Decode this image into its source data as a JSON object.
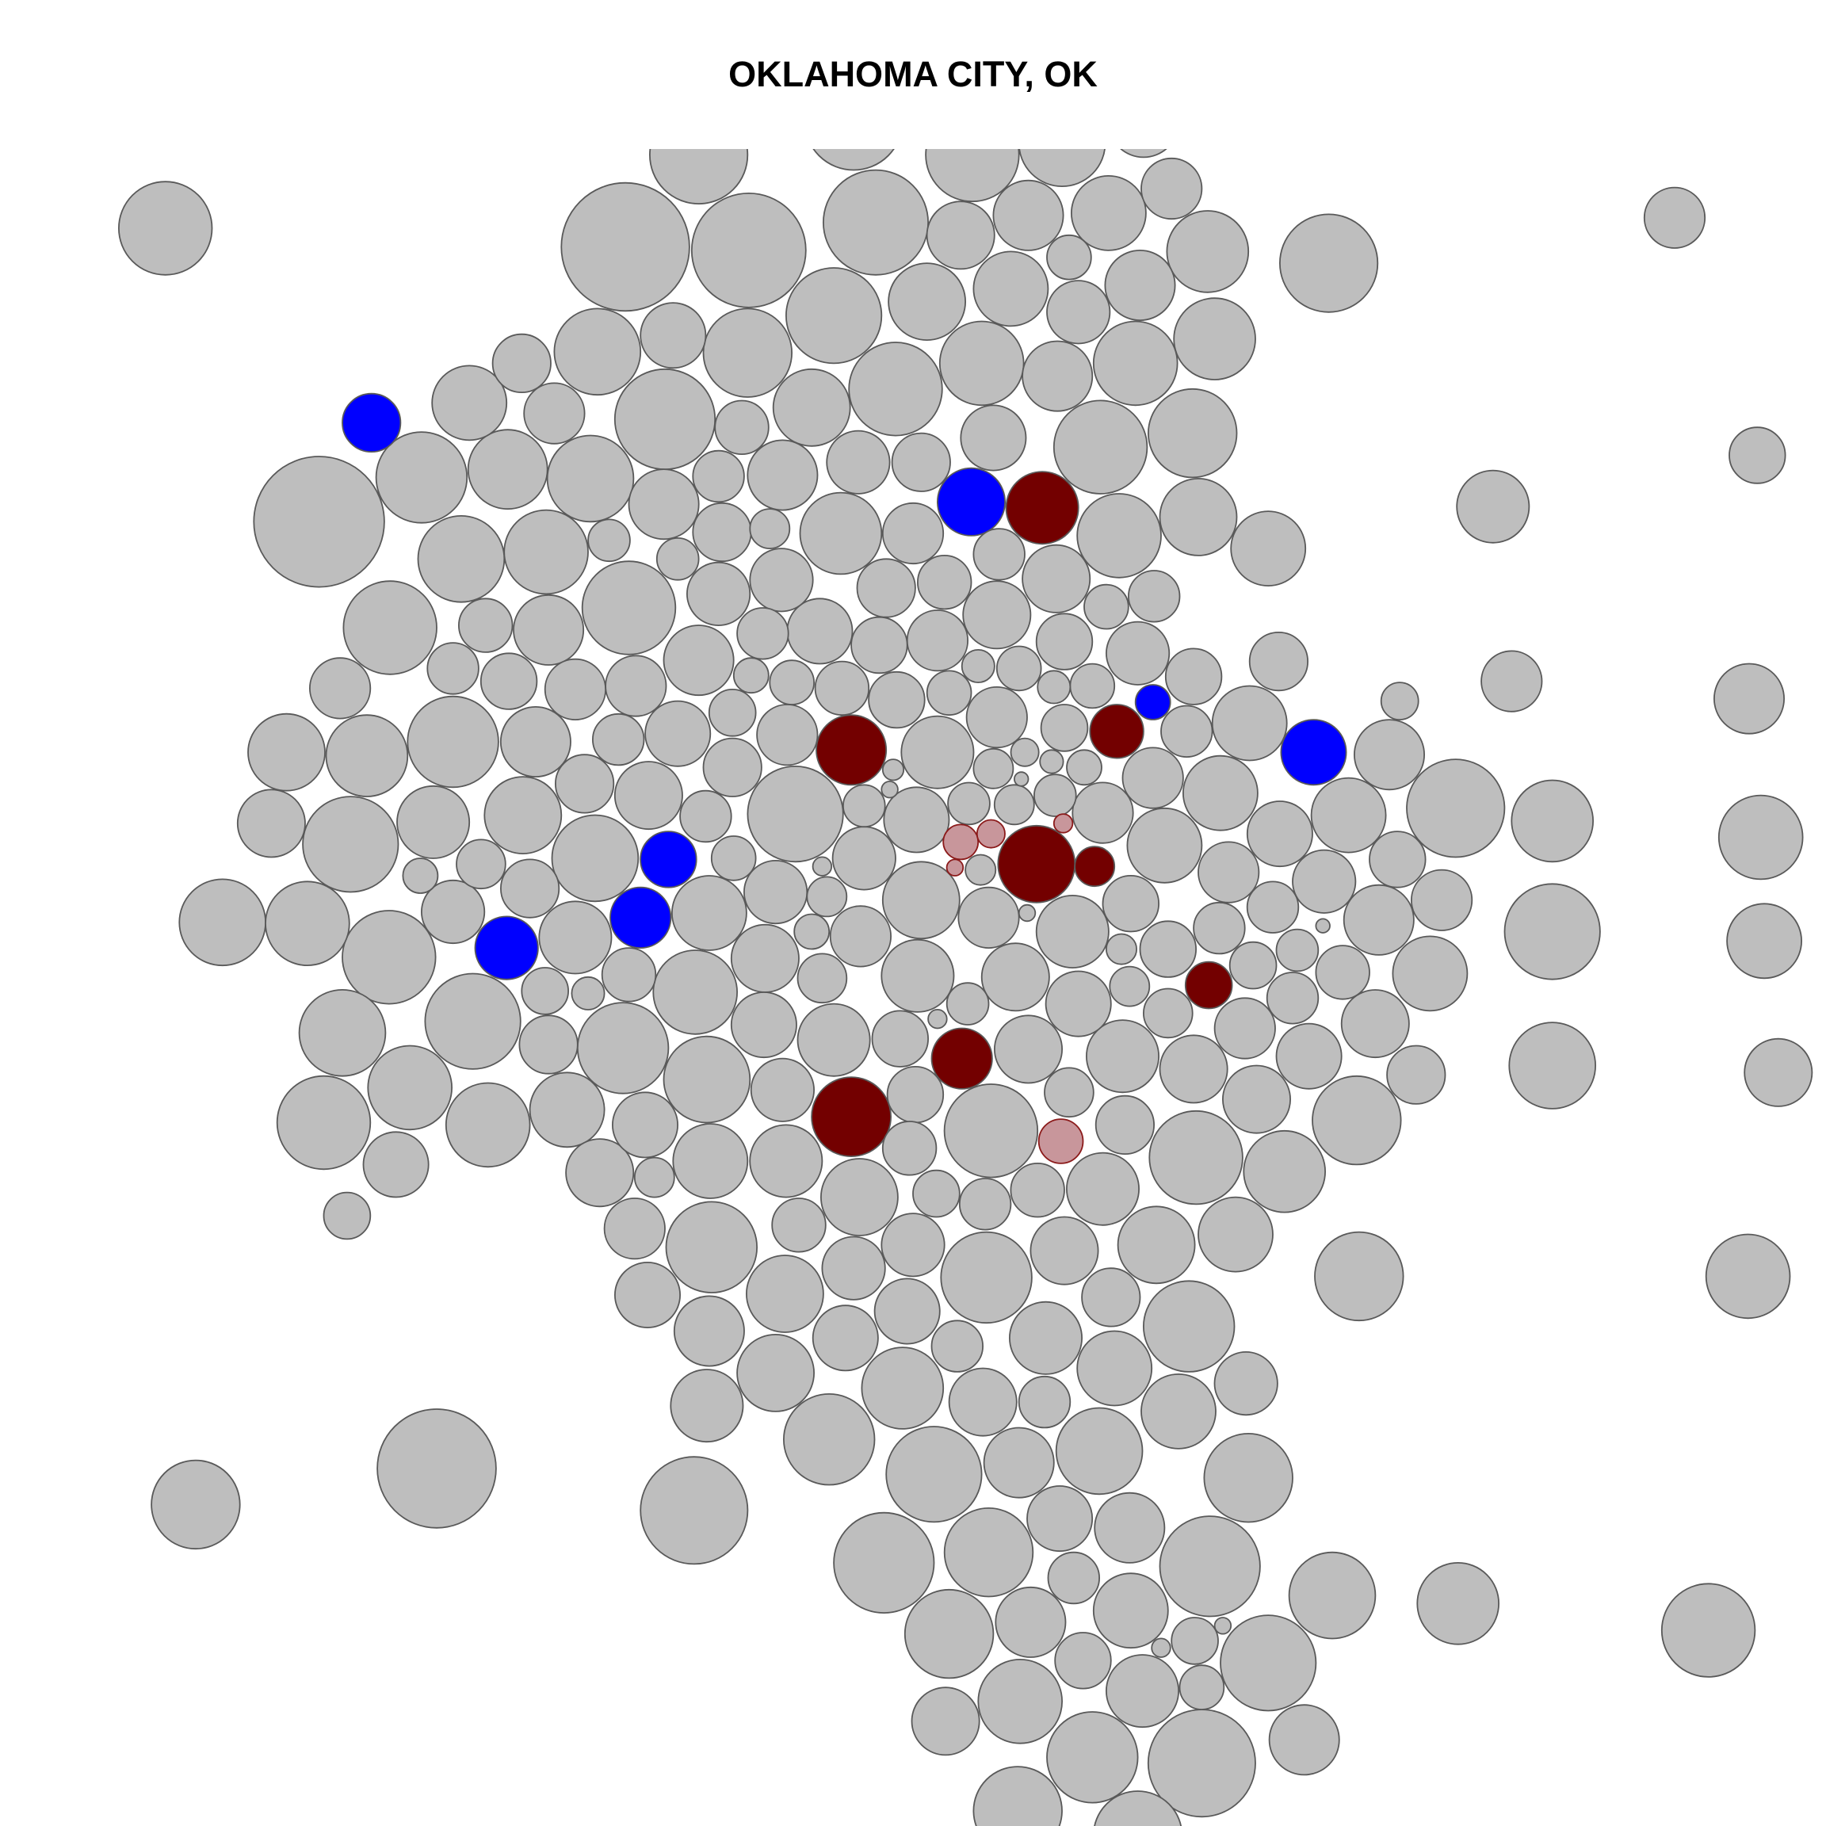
{
  "title": "OKLAHOMA CITY, OK",
  "legend_colors": {
    "default": "#bebebe",
    "blue": "#0000ff",
    "dark_red": "#730000",
    "light_red": "#c8969b",
    "stroke": "#595959"
  }
}
